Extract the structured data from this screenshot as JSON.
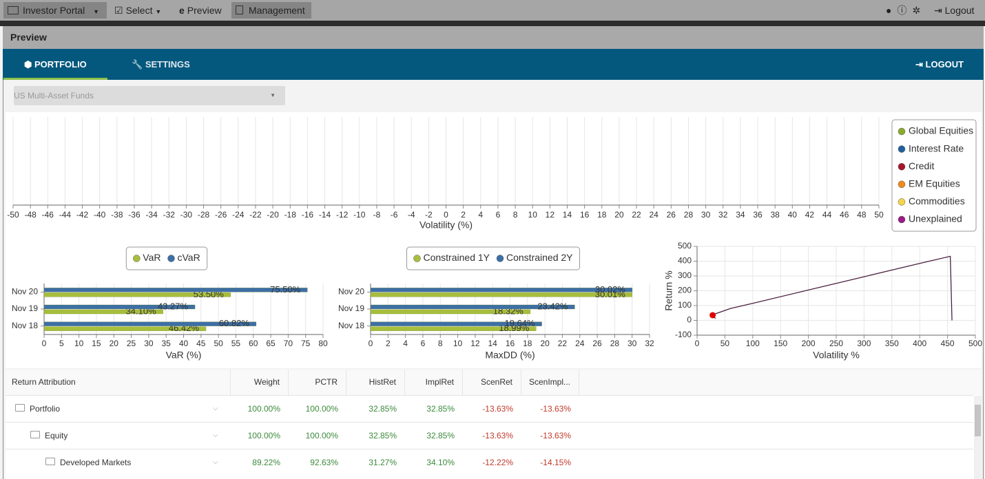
{
  "topbar": {
    "menu": [
      "Investor Portal",
      "Select",
      "Preview",
      "Management"
    ],
    "logout": "Logout"
  },
  "panel_title": "Preview",
  "tabs": [
    "PORTFOLIO",
    "SETTINGS"
  ],
  "logout_tab": "LOGOUT",
  "fund_select": "US Multi-Asset Funds",
  "chart_data": [
    {
      "type": "scatter",
      "xlabel": "Volatility (%)",
      "xlim": [
        -50,
        50
      ],
      "xticks": [
        -50,
        -48,
        -46,
        -44,
        -42,
        -40,
        -38,
        -36,
        -34,
        -32,
        -30,
        -28,
        -26,
        -24,
        -22,
        -20,
        -18,
        -16,
        -14,
        -12,
        -10,
        -8,
        -6,
        -4,
        -2,
        0,
        2,
        4,
        6,
        8,
        10,
        12,
        14,
        16,
        18,
        20,
        22,
        24,
        26,
        28,
        30,
        32,
        34,
        36,
        38,
        40,
        42,
        44,
        46,
        48,
        50
      ],
      "grid": true,
      "legend": "right",
      "series": [
        {
          "name": "Global Equities",
          "color": "#8aab2c",
          "x": [],
          "values": []
        },
        {
          "name": "Interest Rate",
          "color": "#21609e",
          "x": [],
          "values": []
        },
        {
          "name": "Credit",
          "color": "#a3172a",
          "x": [],
          "values": []
        },
        {
          "name": "EM Equities",
          "color": "#ef8a1c",
          "x": [],
          "values": []
        },
        {
          "name": "Commodities",
          "color": "#f4d54a",
          "x": [],
          "values": []
        },
        {
          "name": "Unexplained",
          "color": "#9c1b86",
          "x": [],
          "values": []
        }
      ]
    },
    {
      "type": "hbar",
      "xlabel": "VaR (%)",
      "categories": [
        "Nov 20",
        "Nov 19",
        "Nov 18"
      ],
      "xlim": [
        0,
        80
      ],
      "xticks": [
        0,
        5,
        10,
        15,
        20,
        25,
        30,
        35,
        40,
        45,
        50,
        55,
        60,
        65,
        70,
        75,
        80
      ],
      "grid": true,
      "legend": "top",
      "series": [
        {
          "name": "VaR",
          "color": "#a7bf3c",
          "values": [
            53.5,
            34.1,
            46.42
          ],
          "value_labels": [
            "53.50%",
            "34.10%",
            "46.42%"
          ]
        },
        {
          "name": "cVaR",
          "color": "#3d6fa6",
          "values": [
            75.5,
            43.27,
            60.82
          ],
          "value_labels": [
            "75.50%",
            "43.27%",
            "60.82%"
          ]
        }
      ]
    },
    {
      "type": "hbar",
      "xlabel": "MaxDD (%)",
      "categories": [
        "Nov 20",
        "Nov 19",
        "Nov 18"
      ],
      "xlim": [
        0,
        32
      ],
      "xticks": [
        0,
        2,
        4,
        6,
        8,
        10,
        12,
        14,
        16,
        18,
        20,
        22,
        24,
        26,
        28,
        30,
        32
      ],
      "grid": true,
      "legend": "top",
      "series": [
        {
          "name": "Constrained 1Y",
          "color": "#a7bf3c",
          "values": [
            30.01,
            18.32,
            18.99
          ],
          "value_labels": [
            "30.01%",
            "18.32%",
            "18.99%"
          ]
        },
        {
          "name": "Constrained 2Y",
          "color": "#3d6fa6",
          "values": [
            30.02,
            23.42,
            19.64
          ],
          "value_labels": [
            "30.02%",
            "23.42%",
            "19.64%"
          ]
        }
      ]
    },
    {
      "type": "line",
      "xlabel": "Volatility %",
      "ylabel": "Return %",
      "xlim": [
        0,
        500
      ],
      "xticks": [
        0,
        50,
        100,
        150,
        200,
        250,
        300,
        350,
        400,
        450,
        500
      ],
      "ylim": [
        -100,
        500
      ],
      "yticks": [
        -100,
        0,
        100,
        200,
        300,
        400,
        500
      ],
      "grid": true,
      "series": [
        {
          "color": "#4a2040",
          "x": [
            33,
            28,
            60,
            100,
            200,
            300,
            400,
            455,
            458
          ],
          "values": [
            12,
            38,
            80,
            115,
            205,
            295,
            385,
            433,
            0
          ]
        },
        {
          "color": "#e00000",
          "marker": "dot",
          "x": [
            28
          ],
          "values": [
            35
          ]
        }
      ]
    }
  ],
  "table": {
    "columns": [
      "Return Attribution",
      "Weight",
      "PCTR",
      "HistRet",
      "ImplRet",
      "ScenRet",
      "ScenImpl..."
    ],
    "rows": [
      {
        "name": "Portfolio",
        "values": [
          "100.00%",
          "100.00%",
          "32.85%",
          "32.85%",
          "-13.63%",
          "-13.63%"
        ]
      },
      {
        "name": "Equity",
        "values": [
          "100.00%",
          "100.00%",
          "32.85%",
          "32.85%",
          "-13.63%",
          "-13.63%"
        ]
      },
      {
        "name": "Developed Markets",
        "values": [
          "89.22%",
          "92.63%",
          "31.27%",
          "34.10%",
          "-12.22%",
          "-14.15%"
        ]
      }
    ]
  }
}
